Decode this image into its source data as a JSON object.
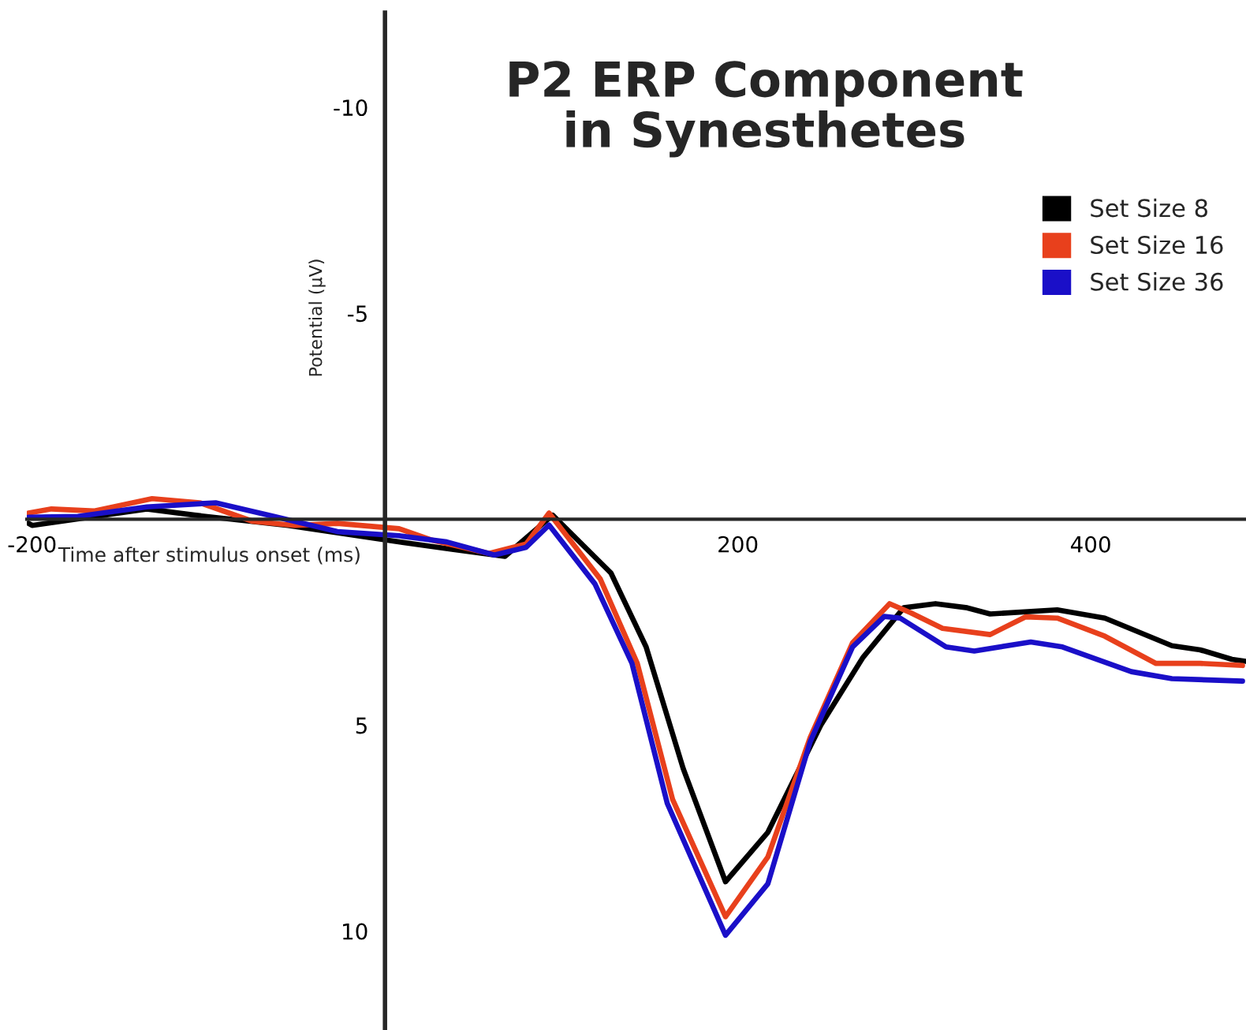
{
  "chart_data": {
    "type": "line",
    "title": "P2 ERP Component\nin Synesthetes",
    "xlabel": "Time after stimulus onset (ms)",
    "ylabel": "Potential (µV)",
    "xlim": [
      -203,
      488
    ],
    "ylim": [
      12.4,
      -12.3
    ],
    "xticks": [
      -200,
      200,
      400
    ],
    "yticks": [
      -10,
      -5,
      5,
      10
    ],
    "grid": false,
    "legend": "top right",
    "line_style": "solid",
    "series": [
      {
        "name": "Set Size 8",
        "color": "#000000",
        "x": [
          -202,
          -200,
          -135,
          -108,
          -55,
          0,
          38,
          68,
          95,
          128,
          148,
          169,
          193,
          217,
          247,
          271,
          294,
          312,
          330,
          343,
          381,
          408,
          446,
          462,
          480,
          488
        ],
        "values": [
          0.1,
          0.15,
          -0.25,
          -0.1,
          0.15,
          0.5,
          0.73,
          0.9,
          -0.1,
          1.3,
          3.1,
          6.05,
          8.8,
          7.6,
          5.0,
          3.35,
          2.15,
          2.05,
          2.15,
          2.3,
          2.2,
          2.4,
          3.07,
          3.17,
          3.4,
          3.45
        ]
      },
      {
        "name": "Set Size 16",
        "color": "#e8401c",
        "x": [
          -202,
          -189,
          -165,
          -132,
          -105,
          -75,
          -51,
          -27,
          8,
          26,
          59,
          80,
          93,
          122,
          143,
          163,
          193,
          217,
          241,
          265,
          286,
          298,
          316,
          343,
          363,
          381,
          408,
          437,
          462,
          486
        ],
        "values": [
          -0.15,
          -0.25,
          -0.2,
          -0.5,
          -0.4,
          0.05,
          0.15,
          0.1,
          0.23,
          0.5,
          0.83,
          0.6,
          -0.15,
          1.45,
          3.5,
          6.8,
          9.65,
          8.2,
          5.3,
          3.0,
          2.05,
          2.27,
          2.65,
          2.8,
          2.37,
          2.4,
          2.84,
          3.5,
          3.5,
          3.55
        ]
      },
      {
        "name": "Set Size 36",
        "color": "#1a0fc8",
        "x": [
          -202,
          -174,
          -135,
          -96,
          -63,
          -27,
          8,
          35,
          62,
          80,
          93,
          119,
          140,
          160,
          193,
          217,
          241,
          265,
          283,
          292,
          318,
          334,
          366,
          384,
          423,
          446,
          486
        ],
        "values": [
          -0.05,
          -0.07,
          -0.3,
          -0.4,
          -0.07,
          0.3,
          0.4,
          0.55,
          0.87,
          0.68,
          0.14,
          1.57,
          3.5,
          6.9,
          10.1,
          8.85,
          5.4,
          3.1,
          2.36,
          2.4,
          3.1,
          3.2,
          2.98,
          3.1,
          3.7,
          3.87,
          3.93
        ]
      }
    ]
  }
}
